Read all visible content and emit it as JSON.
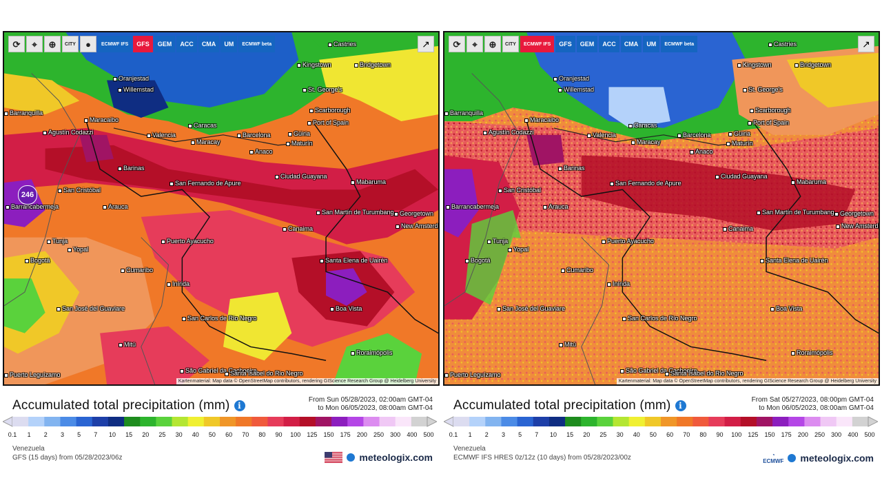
{
  "toolbar": {
    "reload_icon": "refresh-icon",
    "location_icon": "location-pin-icon",
    "zoom_icon": "magnifier-icon",
    "city_label": "CITY",
    "dot_icon": "dot-icon",
    "share_icon": "share-icon"
  },
  "left": {
    "models": [
      "ECMWF IFS",
      "GFS",
      "GEM",
      "ACC",
      "CMA",
      "UM",
      "ECMWF beta"
    ],
    "active_model": "GFS",
    "max_value": "246",
    "cities": [
      {
        "name": "Castries"
      },
      {
        "name": "Kingstown"
      },
      {
        "name": "Bridgetown"
      },
      {
        "name": "Oranjestad"
      },
      {
        "name": "Willemstad"
      },
      {
        "name": "St. George's"
      },
      {
        "name": "Scarborough"
      },
      {
        "name": "Port of Spain"
      },
      {
        "name": "Barranquilla"
      },
      {
        "name": "Maracaibo"
      },
      {
        "name": "Agustín Codazzi"
      },
      {
        "name": "Valencia"
      },
      {
        "name": "Caracas"
      },
      {
        "name": "Barcelona"
      },
      {
        "name": "Güiria"
      },
      {
        "name": "Maracay"
      },
      {
        "name": "Maturín"
      },
      {
        "name": "Anaco"
      },
      {
        "name": "Barinas"
      },
      {
        "name": "San Cristóbal"
      },
      {
        "name": "San Fernando de Apure"
      },
      {
        "name": "Ciudad Guayana"
      },
      {
        "name": "Mabaruma"
      },
      {
        "name": "Barrancabermeja"
      },
      {
        "name": "Arauca"
      },
      {
        "name": "Georgetown"
      },
      {
        "name": "San Martín de Turumbang"
      },
      {
        "name": "New Amsterdam"
      },
      {
        "name": "Canaima"
      },
      {
        "name": "Tunja"
      },
      {
        "name": "Yopal"
      },
      {
        "name": "Puerto Ayacucho"
      },
      {
        "name": "Bogotá"
      },
      {
        "name": "Santa Elena de Uairén"
      },
      {
        "name": "Cumaribo"
      },
      {
        "name": "Inírida"
      },
      {
        "name": "Boa Vista"
      },
      {
        "name": "San José del Guaviare"
      },
      {
        "name": "San Carlos de Río Negro"
      },
      {
        "name": "Mitú"
      },
      {
        "name": "Roraimópolis"
      },
      {
        "name": "São Gabriel da Cachoeira"
      },
      {
        "name": "Santa Isabel do Rio Negro"
      },
      {
        "name": "Puerto Leguízamo"
      }
    ],
    "attribution": "Kartenmaterial: Map data © OpenStreetMap contributors, rendering GIScience Research Group @ Heidelberg University",
    "title": "Accumulated total precipitation (mm)",
    "range_from": "From Sun 05/28/2023, 02:00am GMT-04",
    "range_to": "to Mon 06/05/2023, 08:00am GMT-04",
    "region": "Venezuela",
    "model_info": "GFS (15 days) from 05/28/2023/06z",
    "brand": "meteologix.com",
    "flag_icon": "us-flag-icon"
  },
  "right": {
    "models": [
      "ECMWF IFS",
      "GFS",
      "GEM",
      "ACC",
      "CMA",
      "UM",
      "ECMWF beta"
    ],
    "active_model": "ECMWF IFS",
    "cities": [
      {
        "name": "Castries"
      },
      {
        "name": "Kingstown"
      },
      {
        "name": "Bridgetown"
      },
      {
        "name": "Oranjestad"
      },
      {
        "name": "Willemstad"
      },
      {
        "name": "St. George's"
      },
      {
        "name": "Scarborough"
      },
      {
        "name": "Port of Spain"
      },
      {
        "name": "Barranquilla"
      },
      {
        "name": "Maracaibo"
      },
      {
        "name": "Agustín Codazzi"
      },
      {
        "name": "Valencia"
      },
      {
        "name": "Caracas"
      },
      {
        "name": "Barcelona"
      },
      {
        "name": "Güiria"
      },
      {
        "name": "Maracay"
      },
      {
        "name": "Maturín"
      },
      {
        "name": "Anaco"
      },
      {
        "name": "Barinas"
      },
      {
        "name": "San Cristóbal"
      },
      {
        "name": "San Fernando de Apure"
      },
      {
        "name": "Ciudad Guayana"
      },
      {
        "name": "Mabaruma"
      },
      {
        "name": "Barrancabermeja"
      },
      {
        "name": "Arauca"
      },
      {
        "name": "Georgetown"
      },
      {
        "name": "San Martín de Turumbang"
      },
      {
        "name": "New Amsterdam"
      },
      {
        "name": "Canaima"
      },
      {
        "name": "Tunja"
      },
      {
        "name": "Yopal"
      },
      {
        "name": "Puerto Ayacucho"
      },
      {
        "name": "Bogotá"
      },
      {
        "name": "Santa Elena de Uairén"
      },
      {
        "name": "Cumaribo"
      },
      {
        "name": "Inírida"
      },
      {
        "name": "Boa Vista"
      },
      {
        "name": "San José del Guaviare"
      },
      {
        "name": "San Carlos de Río Negro"
      },
      {
        "name": "Mitú"
      },
      {
        "name": "Roraimópolis"
      },
      {
        "name": "São Gabriel da Cachoeira"
      },
      {
        "name": "Santa Isabel do Rio Negro"
      },
      {
        "name": "Puerto Leguízamo"
      }
    ],
    "attribution": "Kartenmaterial: Map data © OpenStreetMap contributors, rendering GIScience Research Group @ Heidelberg University",
    "title": "Accumulated total precipitation (mm)",
    "range_from": "From Sat 05/27/2023, 08:00pm GMT-04",
    "range_to": "to Mon 06/05/2023, 08:00am GMT-04",
    "region": "Venezuela",
    "model_info": "ECMWF IFS HRES 0z/12z (10 days) from 05/28/2023/00z",
    "brand": "meteologix.com",
    "logo_text": "ECMWF"
  },
  "legend": {
    "ticks": [
      "0.1",
      "1",
      "2",
      "3",
      "5",
      "7",
      "10",
      "15",
      "20",
      "25",
      "30",
      "40",
      "50",
      "60",
      "70",
      "80",
      "90",
      "100",
      "125",
      "150",
      "175",
      "200",
      "250",
      "300",
      "400",
      "500"
    ],
    "colors": [
      "#dcdcf0",
      "#b4d2fa",
      "#82b4f0",
      "#4b8be6",
      "#2a64d2",
      "#1d3fa8",
      "#0f2d82",
      "#1e8c1e",
      "#2db42d",
      "#5ad23c",
      "#b4e632",
      "#f0f032",
      "#f0c828",
      "#f09628",
      "#f07828",
      "#f05a3c",
      "#e63c5a",
      "#d21e46",
      "#b40f28",
      "#a01464",
      "#8c1ebe",
      "#b446e6",
      "#dc8cf0",
      "#f0c8f5",
      "#fae6fa",
      "#d2d2d2"
    ]
  }
}
